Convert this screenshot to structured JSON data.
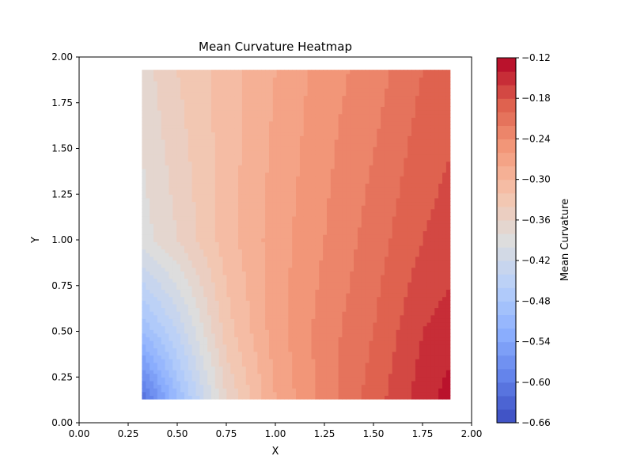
{
  "chart_data": {
    "type": "heatmap",
    "title": "Mean Curvature Heatmap",
    "xlabel": "X",
    "ylabel": "Y",
    "xlim": [
      0,
      2
    ],
    "ylim": [
      0,
      2
    ],
    "x_ticks": [
      "0.00",
      "0.25",
      "0.50",
      "0.75",
      "1.00",
      "1.25",
      "1.50",
      "1.75",
      "2.00"
    ],
    "y_ticks": [
      "0.00",
      "0.25",
      "0.50",
      "0.75",
      "1.00",
      "1.25",
      "1.50",
      "1.75",
      "2.00"
    ],
    "data_extent": {
      "x": [
        0.32,
        1.89
      ],
      "y": [
        0.13,
        1.93
      ]
    },
    "colormap": "coolwarm",
    "grid": false,
    "colorbar": {
      "label": "Mean Curvature",
      "range": [
        -0.66,
        -0.12
      ],
      "levels": 27,
      "ticks": [
        "−0.12",
        "−0.18",
        "−0.24",
        "−0.30",
        "−0.36",
        "−0.42",
        "−0.48",
        "−0.54",
        "−0.60",
        "−0.66"
      ]
    },
    "sample_values": {
      "x": [
        0.32,
        0.5,
        0.75,
        1.0,
        1.25,
        1.5,
        1.75,
        1.89
      ],
      "rows": [
        {
          "y": 1.93,
          "z": [
            -0.37,
            -0.34,
            -0.31,
            -0.28,
            -0.25,
            -0.23,
            -0.2,
            -0.19
          ]
        },
        {
          "y": 1.0,
          "z": [
            -0.39,
            -0.36,
            -0.31,
            -0.27,
            -0.24,
            -0.21,
            -0.18,
            -0.17
          ]
        },
        {
          "y": 0.5,
          "z": [
            -0.5,
            -0.44,
            -0.33,
            -0.27,
            -0.23,
            -0.2,
            -0.16,
            -0.15
          ]
        },
        {
          "y": 0.13,
          "z": [
            -0.62,
            -0.5,
            -0.36,
            -0.28,
            -0.23,
            -0.19,
            -0.15,
            -0.13
          ]
        }
      ]
    }
  }
}
